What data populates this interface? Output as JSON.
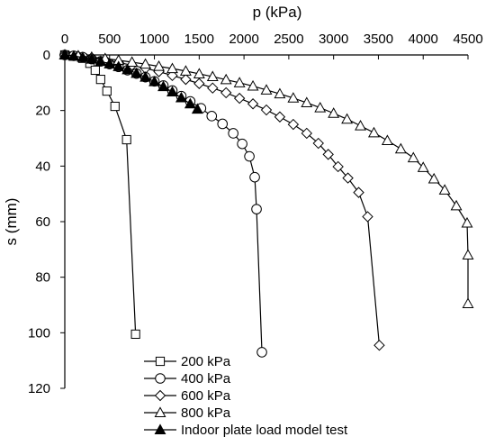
{
  "chart_data": {
    "type": "line",
    "title": "",
    "xlabel": "p (kPa)",
    "ylabel": "s (mm)",
    "xlim": [
      0,
      4500
    ],
    "ylim": [
      0,
      120
    ],
    "x_axis_position": "top",
    "y_inverted": true,
    "grid": false,
    "x_ticks": [
      "0",
      "500",
      "1000",
      "1500",
      "2000",
      "2500",
      "3000",
      "3500",
      "4000",
      "4500"
    ],
    "y_ticks": [
      "0",
      "20",
      "40",
      "60",
      "80",
      "100",
      "120"
    ],
    "legend_position": "bottom-left",
    "series": [
      {
        "name": "200 kPa",
        "marker": "square-open",
        "points": [
          [
            0,
            0
          ],
          [
            100,
            0.4
          ],
          [
            200,
            1.2
          ],
          [
            280,
            3
          ],
          [
            340,
            5.5
          ],
          [
            400,
            8.8
          ],
          [
            470,
            13
          ],
          [
            560,
            18.5
          ],
          [
            690,
            30.5
          ],
          [
            790,
            100.5
          ]
        ]
      },
      {
        "name": "400 kPa",
        "marker": "circle-open",
        "points": [
          [
            0,
            0
          ],
          [
            100,
            0.3
          ],
          [
            200,
            0.8
          ],
          [
            300,
            1.5
          ],
          [
            400,
            2.3
          ],
          [
            500,
            3.3
          ],
          [
            600,
            4.3
          ],
          [
            700,
            5.5
          ],
          [
            800,
            6.7
          ],
          [
            900,
            8
          ],
          [
            1000,
            9.5
          ],
          [
            1100,
            11
          ],
          [
            1200,
            12.8
          ],
          [
            1300,
            14.8
          ],
          [
            1400,
            16.7
          ],
          [
            1520,
            19.2
          ],
          [
            1640,
            22
          ],
          [
            1760,
            24.8
          ],
          [
            1880,
            28.2
          ],
          [
            1980,
            32
          ],
          [
            2060,
            36.5
          ],
          [
            2120,
            44
          ],
          [
            2140,
            55.5
          ],
          [
            2200,
            107
          ]
        ]
      },
      {
        "name": "600 kPa",
        "marker": "diamond-open",
        "points": [
          [
            0,
            0
          ],
          [
            150,
            0.4
          ],
          [
            300,
            1
          ],
          [
            450,
            1.8
          ],
          [
            600,
            2.7
          ],
          [
            750,
            3.7
          ],
          [
            900,
            4.8
          ],
          [
            1050,
            6
          ],
          [
            1200,
            7.4
          ],
          [
            1350,
            8.8
          ],
          [
            1500,
            10.3
          ],
          [
            1650,
            11.9
          ],
          [
            1800,
            13.6
          ],
          [
            1950,
            15.6
          ],
          [
            2100,
            17.6
          ],
          [
            2250,
            19.8
          ],
          [
            2400,
            22.3
          ],
          [
            2550,
            25
          ],
          [
            2700,
            28.2
          ],
          [
            2830,
            31.8
          ],
          [
            2940,
            35.8
          ],
          [
            3050,
            40.2
          ],
          [
            3160,
            44.3
          ],
          [
            3280,
            49.5
          ],
          [
            3380,
            58.2
          ],
          [
            3510,
            104.5
          ]
        ]
      },
      {
        "name": "800 kPa",
        "marker": "triangle-open",
        "points": [
          [
            0,
            0
          ],
          [
            150,
            0.3
          ],
          [
            300,
            0.8
          ],
          [
            450,
            1.3
          ],
          [
            600,
            1.9
          ],
          [
            750,
            2.6
          ],
          [
            900,
            3.3
          ],
          [
            1050,
            4.1
          ],
          [
            1200,
            4.9
          ],
          [
            1350,
            5.8
          ],
          [
            1500,
            6.8
          ],
          [
            1650,
            7.8
          ],
          [
            1800,
            8.9
          ],
          [
            1950,
            10
          ],
          [
            2100,
            11.2
          ],
          [
            2250,
            12.6
          ],
          [
            2400,
            14
          ],
          [
            2550,
            15.5
          ],
          [
            2700,
            17.2
          ],
          [
            2850,
            19
          ],
          [
            3000,
            21
          ],
          [
            3150,
            23.1
          ],
          [
            3300,
            25.5
          ],
          [
            3450,
            28
          ],
          [
            3600,
            30.8
          ],
          [
            3750,
            33.8
          ],
          [
            3890,
            37
          ],
          [
            4000,
            40.5
          ],
          [
            4120,
            44.6
          ],
          [
            4240,
            48.6
          ],
          [
            4370,
            54.3
          ],
          [
            4490,
            60.5
          ],
          [
            4580,
            72
          ],
          [
            4680,
            89.5
          ]
        ]
      },
      {
        "name": "Indoor plate load model test",
        "marker": "triangle-filled",
        "points": [
          [
            0,
            0
          ],
          [
            100,
            0.4
          ],
          [
            200,
            0.9
          ],
          [
            300,
            1.5
          ],
          [
            400,
            2.3
          ],
          [
            500,
            3.2
          ],
          [
            600,
            4.2
          ],
          [
            700,
            5.3
          ],
          [
            800,
            6.6
          ],
          [
            900,
            8
          ],
          [
            1000,
            9.6
          ],
          [
            1100,
            11.4
          ],
          [
            1200,
            13.3
          ],
          [
            1300,
            15.4
          ],
          [
            1400,
            17.6
          ],
          [
            1480,
            19.5
          ]
        ]
      }
    ]
  }
}
